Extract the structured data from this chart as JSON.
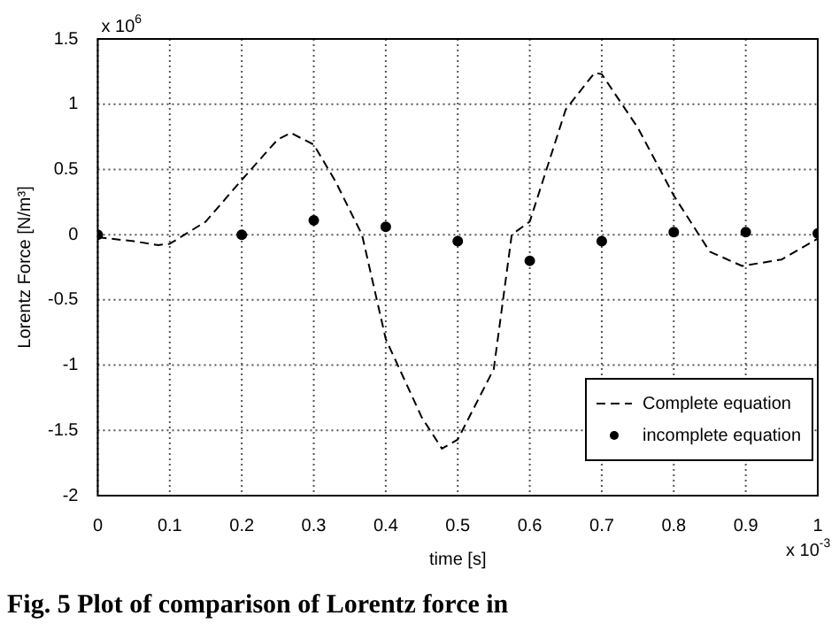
{
  "chart_data": {
    "type": "line",
    "xlabel": "time [s]",
    "ylabel": "Lorentz Force [N/m³]",
    "xlim": [
      0,
      1
    ],
    "xticks": [
      0,
      0.1,
      0.2,
      0.3,
      0.4,
      0.5,
      0.6,
      0.7,
      0.8,
      0.9,
      1
    ],
    "ylim": [
      -2,
      1.5
    ],
    "yticks": [
      -2,
      -1.5,
      -1,
      -0.5,
      0,
      0.5,
      1,
      1.5
    ],
    "grid": true,
    "legend": "bottom right",
    "annotations": [
      "x 10$^{6}$",
      "x 10$^{-3}$",
      "Fig. 5 Plot of comparison of Lorentz force in"
    ],
    "series": [
      {
        "name": "Complete equation",
        "color": "#000000",
        "line_style": "dashed",
        "marker": "none",
        "x": [
          0,
          0.05,
          0.084,
          0.1,
          0.15,
          0.2,
          0.25,
          0.268,
          0.3,
          0.33,
          0.367,
          0.4,
          0.45,
          0.478,
          0.5,
          0.55,
          0.575,
          0.6,
          0.65,
          0.69,
          0.7,
          0.75,
          0.8,
          0.85,
          0.895,
          0.95,
          1
        ],
        "values": [
          -0.02,
          -0.05,
          -0.08,
          -0.07,
          0.1,
          0.42,
          0.73,
          0.78,
          0.69,
          0.41,
          0,
          -0.8,
          -1.4,
          -1.64,
          -1.57,
          -1.03,
          0,
          0.1,
          0.96,
          1.24,
          1.23,
          0.82,
          0.3,
          -0.13,
          -0.24,
          -0.19,
          -0.03
        ]
      },
      {
        "name": "incomplete equation",
        "type": "scatter",
        "color": "#000000",
        "marker": "circle",
        "x": [
          0,
          0.2,
          0.3,
          0.4,
          0.5,
          0.6,
          0.7,
          0.8,
          0.9,
          1
        ],
        "values": [
          0,
          0,
          0.11,
          0.06,
          -0.05,
          -0.2,
          -0.05,
          0.02,
          0.02,
          0.01
        ]
      }
    ]
  }
}
